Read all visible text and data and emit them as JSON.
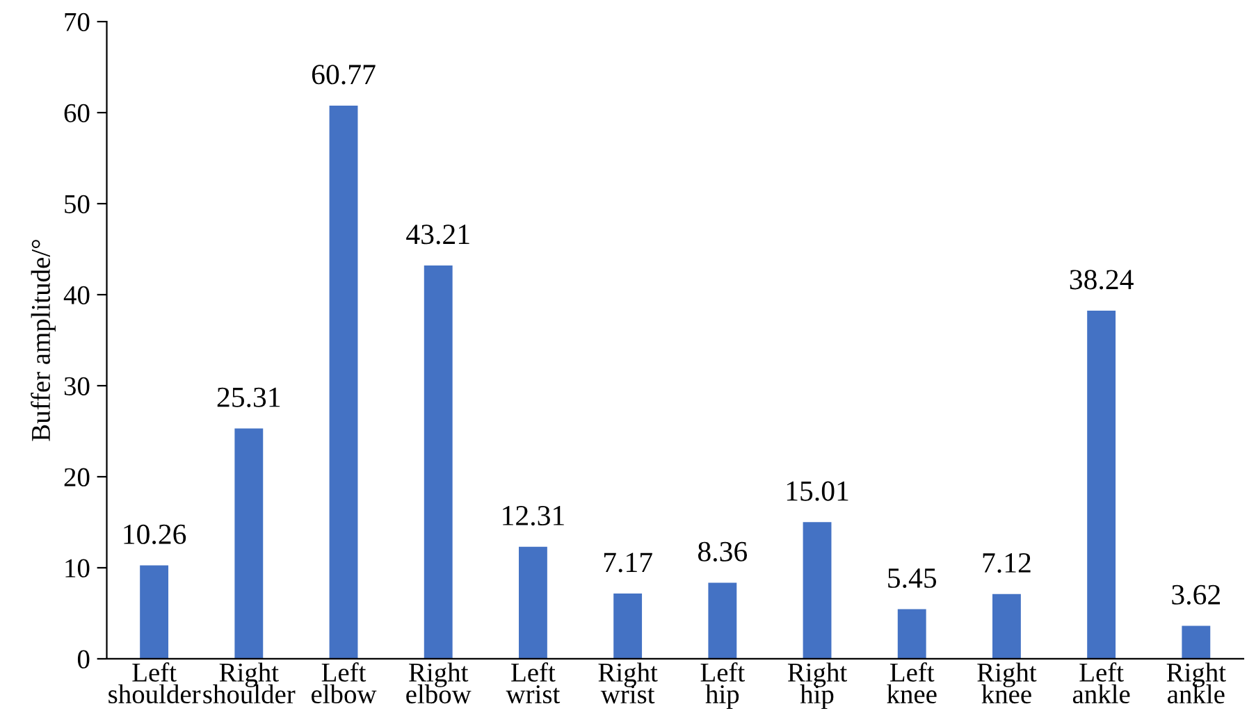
{
  "chart_data": {
    "type": "bar",
    "ylabel": "Buffer amplitude/°",
    "categories": [
      "Left\nshoulder",
      "Right\nshoulder",
      "Left\nelbow",
      "Right\nelbow",
      "Left\nwrist",
      "Right\nwrist",
      "Left\nhip",
      "Right\nhip",
      "Left\nknee",
      "Right\nknee",
      "Left\nankle",
      "Right\nankle"
    ],
    "values": [
      10.26,
      25.31,
      60.77,
      43.21,
      12.31,
      7.17,
      8.36,
      15.01,
      5.45,
      7.12,
      38.24,
      3.62
    ],
    "color": "#4472c4",
    "ylim": [
      0,
      70
    ],
    "yticks": [
      0,
      10,
      20,
      30,
      40,
      50,
      60,
      70
    ],
    "data_labels": true,
    "grid": false,
    "legend": false
  }
}
